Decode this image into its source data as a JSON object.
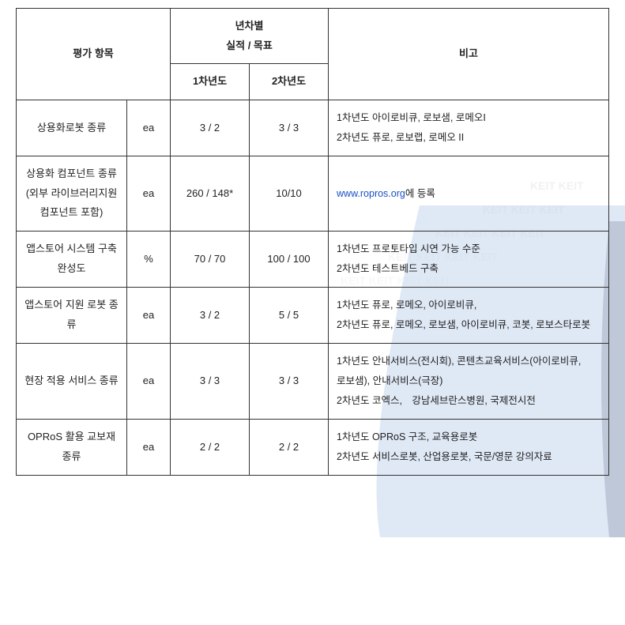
{
  "header": {
    "eval_item": "평가 항목",
    "year_top": "년차별",
    "year_bottom": "실적 / 목표",
    "year1": "1차년도",
    "year2": "2차년도",
    "remarks": "비고"
  },
  "rows": [
    {
      "item": "상용화로봇 종류",
      "unit": "ea",
      "y1": "3 / 2",
      "y2": "3 / 3",
      "remarks_lines": [
        "1차년도 아이로비큐, 로보샘, 로메오I",
        "2차년도 퓨로, 로보랩, 로메오 II"
      ]
    },
    {
      "item": "상용화 컴포넌트 종류 (외부 라이브러리지원 컴포넌트 포함)",
      "unit": "ea",
      "y1": "260 / 148*",
      "y2": "10/10",
      "remarks_html": "<span class=\"link\">www.ropros.org</span>에 등록"
    },
    {
      "item": "앱스토어 시스템 구축 완성도",
      "unit": "%",
      "y1": "70 / 70",
      "y2": "100 / 100",
      "remarks_lines": [
        "1차년도 프로토타입 시연 가능 수준",
        "2차년도 테스트베드 구축"
      ]
    },
    {
      "item": "앱스토어 지원 로봇 종류",
      "unit": "ea",
      "y1": "3 / 2",
      "y2": "5 / 5",
      "remarks_lines": [
        "1차년도 퓨로, 로메오, 아이로비큐,",
        "2차년도 퓨로, 로메오, 로보샘, 아이로비큐, 코봇, 로보스타로봇"
      ]
    },
    {
      "item": "현장 적용 서비스 종류",
      "unit": "ea",
      "y1": "3 / 3",
      "y2": "3 / 3",
      "remarks_lines": [
        "1차년도 안내서비스(전시회), 콘텐츠교육서비스(아이로비큐,　　 로보샘), 안내서비스(극장)",
        "2차년도 코엑스,　강남세브란스병원, 국제전시전"
      ]
    },
    {
      "item": "OPRoS 활용 교보재 종류",
      "unit": "ea",
      "y1": "2 / 2",
      "y2": "2 / 2",
      "remarks_lines": [
        "1차년도 OPRoS 구조, 교육용로봇",
        "2차년도 서비스로봇, 산업용로봇, 국문/영문 강의자료"
      ]
    }
  ],
  "styling": {
    "border_color": "#333333",
    "text_color": "#222222",
    "link_color": "#1a4fc4",
    "background_color": "#ffffff",
    "watermark_blue": "#4a7fc9",
    "watermark_navy": "#1f3a6e",
    "font_size_body": 13,
    "font_size_remarks": 12.5,
    "line_height": 1.9
  }
}
